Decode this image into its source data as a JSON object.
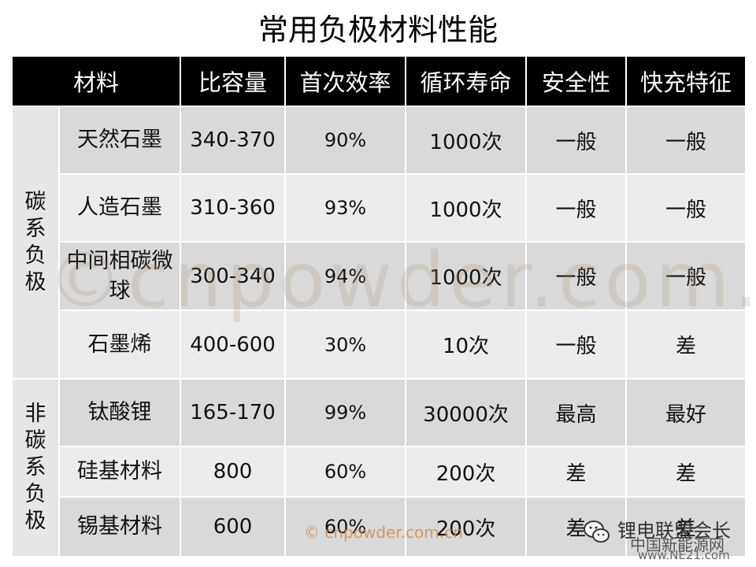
{
  "title": "常用负极材料性能",
  "headers": [
    "材料",
    "比容量",
    "首次效率",
    "循环寿命",
    "安全性",
    "快充特征"
  ],
  "groups": [
    {
      "label": "碳系负极",
      "rows": [
        {
          "name": "天然石墨",
          "capacity": "340-370",
          "efficiency": "90%",
          "cycle_life": "1000次",
          "safety": "一般",
          "fast_charge": "一般"
        },
        {
          "name": "人造石墨",
          "capacity": "310-360",
          "efficiency": "93%",
          "cycle_life": "1000次",
          "safety": "一般",
          "fast_charge": "一般"
        },
        {
          "name": "中间相碳微球",
          "capacity": "300-340",
          "efficiency": "94%",
          "cycle_life": "1000次",
          "safety": "一般",
          "fast_charge": "一般"
        },
        {
          "name": "石墨烯",
          "capacity": "400-600",
          "efficiency": "30%",
          "cycle_life": "10次",
          "safety": "一般",
          "fast_charge": "差"
        }
      ]
    },
    {
      "label": "非碳系负极",
      "rows": [
        {
          "name": "钛酸锂",
          "capacity": "165-170",
          "efficiency": "99%",
          "cycle_life": "30000次",
          "safety": "最高",
          "fast_charge": "最好"
        },
        {
          "name": "硅基材料",
          "capacity": "800",
          "efficiency": "60%",
          "cycle_life": "200次",
          "safety": "差",
          "fast_charge": "差"
        },
        {
          "name": "锡基材料",
          "capacity": "600",
          "efficiency": "60%",
          "cycle_life": "200次",
          "safety": "差",
          "fast_charge": "差"
        }
      ]
    }
  ],
  "watermark": "©cnpowder.com.cn",
  "credit": "© cnpowder.com.cn",
  "brand": {
    "name": "锂电联盟会长",
    "site_line1": "中国新能源网",
    "site_line2": "www.NE21.com",
    "icon": "wechat-icon"
  }
}
